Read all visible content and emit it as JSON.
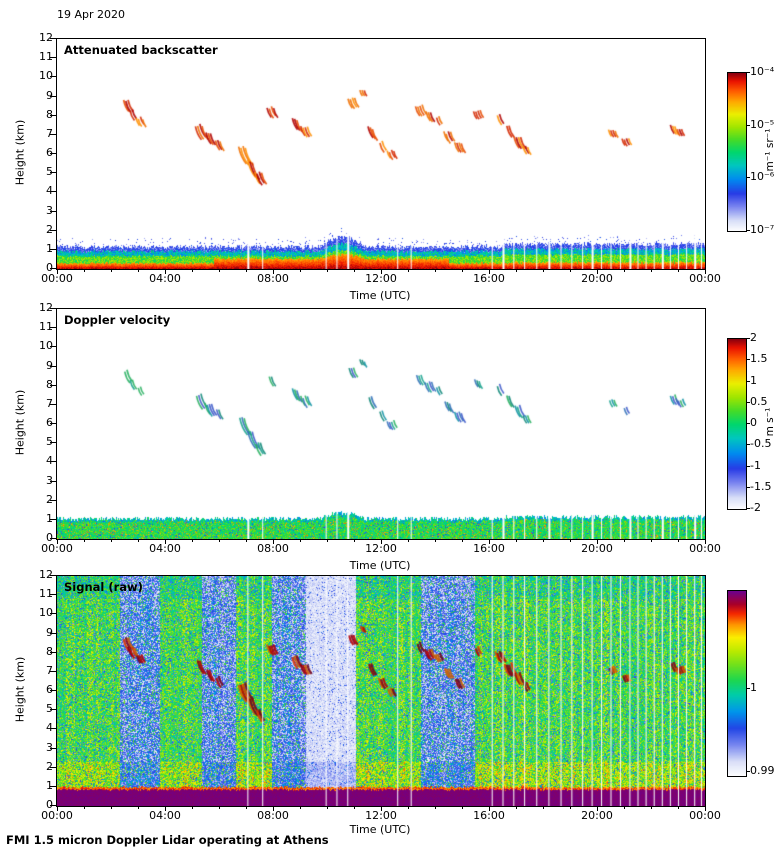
{
  "page": {
    "date_label": "19 Apr 2020",
    "footer_caption": "FMI 1.5 micron Doppler Lidar operating at Athens",
    "background_color": "#ffffff"
  },
  "axes": {
    "x_label": "Time (UTC)",
    "y_label": "Height (km)",
    "x_tick_labels": [
      "00:00",
      "04:00",
      "08:00",
      "12:00",
      "16:00",
      "20:00",
      "00:00"
    ],
    "x_tick_hours": [
      0,
      4,
      8,
      12,
      16,
      20,
      24
    ],
    "x_range_hours": [
      0,
      24
    ],
    "y_tick_labels": [
      "0",
      "1",
      "2",
      "3",
      "4",
      "5",
      "6",
      "7",
      "8",
      "9",
      "10",
      "11",
      "12"
    ],
    "y_range_km": [
      0,
      12
    ]
  },
  "chart_data": [
    {
      "type": "heatmap",
      "title": "Attenuated backscatter",
      "xlabel": "Time (UTC)",
      "ylabel": "Height (km)",
      "x_range_hours": [
        0,
        24
      ],
      "y_range_km": [
        0,
        12
      ],
      "colorbar": {
        "scale": "log",
        "range": [
          "1e-7",
          "1e-4"
        ],
        "tick_labels": [
          "10⁻⁴",
          "10⁻⁵",
          "10⁻⁶",
          "10⁻⁷"
        ],
        "tick_positions": [
          0,
          0.333,
          0.667,
          1
        ],
        "units": "m⁻¹ sr⁻¹"
      },
      "boundary_layer": {
        "top_km": 1.2,
        "description": "Continuous aerosol layer below ~1.3 km: red/orange near surface (~10⁻⁴, thicker 06:00–14:30 UTC), green/yellow mid-layer, blue speckled top; small green hump to ~1.7 km near 10:30 UTC."
      },
      "elevated_layers_value": "thin slanted aerosol/cloud streaks ~10⁻⁵ (orange/red), 5–9.5 km",
      "elevated_layers": [
        {
          "time_utc": 2.55,
          "height_km": 8.85,
          "depth_km": 0.6
        },
        {
          "time_utc": 2.75,
          "height_km": 8.35,
          "depth_km": 0.5
        },
        {
          "time_utc": 3.05,
          "height_km": 7.95,
          "depth_km": 0.4
        },
        {
          "time_utc": 5.25,
          "height_km": 7.6,
          "depth_km": 0.7
        },
        {
          "time_utc": 5.6,
          "height_km": 7.15,
          "depth_km": 0.6
        },
        {
          "time_utc": 5.95,
          "height_km": 6.8,
          "depth_km": 0.5
        },
        {
          "time_utc": 6.85,
          "height_km": 6.45,
          "depth_km": 0.9
        },
        {
          "time_utc": 7.15,
          "height_km": 5.7,
          "depth_km": 0.9
        },
        {
          "time_utc": 7.45,
          "height_km": 5.1,
          "depth_km": 0.6
        },
        {
          "time_utc": 7.9,
          "height_km": 8.5,
          "depth_km": 0.5
        },
        {
          "time_utc": 8.8,
          "height_km": 7.9,
          "depth_km": 0.6
        },
        {
          "time_utc": 9.15,
          "height_km": 7.5,
          "depth_km": 0.5
        },
        {
          "time_utc": 10.9,
          "height_km": 9.0,
          "depth_km": 0.5
        },
        {
          "time_utc": 11.3,
          "height_km": 9.4,
          "depth_km": 0.3
        },
        {
          "time_utc": 11.6,
          "height_km": 7.45,
          "depth_km": 0.6
        },
        {
          "time_utc": 12.0,
          "height_km": 6.7,
          "depth_km": 0.5
        },
        {
          "time_utc": 12.35,
          "height_km": 6.25,
          "depth_km": 0.4
        },
        {
          "time_utc": 13.4,
          "height_km": 8.6,
          "depth_km": 0.5
        },
        {
          "time_utc": 13.75,
          "height_km": 8.25,
          "depth_km": 0.5
        },
        {
          "time_utc": 14.1,
          "height_km": 8.0,
          "depth_km": 0.4
        },
        {
          "time_utc": 14.45,
          "height_km": 7.2,
          "depth_km": 0.5
        },
        {
          "time_utc": 14.85,
          "height_km": 6.7,
          "depth_km": 0.5
        },
        {
          "time_utc": 15.55,
          "height_km": 8.35,
          "depth_km": 0.4
        },
        {
          "time_utc": 16.35,
          "height_km": 8.1,
          "depth_km": 0.5
        },
        {
          "time_utc": 16.7,
          "height_km": 7.5,
          "depth_km": 0.6
        },
        {
          "time_utc": 17.05,
          "height_km": 7.0,
          "depth_km": 0.6
        },
        {
          "time_utc": 17.35,
          "height_km": 6.5,
          "depth_km": 0.4
        },
        {
          "time_utc": 20.55,
          "height_km": 7.35,
          "depth_km": 0.35
        },
        {
          "time_utc": 21.05,
          "height_km": 6.9,
          "depth_km": 0.35
        },
        {
          "time_utc": 22.8,
          "height_km": 7.55,
          "depth_km": 0.45
        },
        {
          "time_utc": 23.05,
          "height_km": 7.35,
          "depth_km": 0.35
        }
      ],
      "gap_times_utc": [
        7.05,
        7.6,
        9.95,
        10.35,
        10.75,
        12.6,
        13.1,
        16.1,
        16.5,
        16.9,
        17.3,
        17.75,
        18.2,
        18.65,
        19.05,
        19.45,
        19.8,
        20.15,
        20.5,
        20.85,
        21.2,
        21.5,
        21.8,
        22.1,
        22.4,
        22.7,
        23.0,
        23.3,
        23.6,
        23.85
      ],
      "feature_colors": [
        "#ff9000",
        "#f07000",
        "#e84c00",
        "#d42800",
        "#b00000"
      ]
    },
    {
      "type": "heatmap",
      "title": "Doppler velocity",
      "xlabel": "Time (UTC)",
      "ylabel": "Height (km)",
      "x_range_hours": [
        0,
        24
      ],
      "y_range_km": [
        0,
        12
      ],
      "colorbar": {
        "scale": "linear",
        "range": [
          -2,
          2
        ],
        "tick_labels": [
          "2",
          "1.5",
          "1",
          "0.5",
          "0",
          "-0.5",
          "-1",
          "-1.5",
          "-2"
        ],
        "tick_positions": [
          0,
          0.125,
          0.25,
          0.375,
          0.5,
          0.625,
          0.75,
          0.875,
          1
        ],
        "units": "m s⁻¹"
      },
      "boundary_layer": {
        "top_km": 1.1,
        "description": "Noisy near-zero velocities (green, ~0 to -0.5 m/s) below ~1.2 km with sparse orange/blue specks; vertical white data gaps after ~16:00 UTC."
      },
      "elevated_layers_value": "same streaks as backscatter panel, teal/green/blue (~ -1 to +0.5 m/s)",
      "elevated_layers": "same locations as Attenuated backscatter panel",
      "feature_colors": [
        "#0e8878",
        "#17a38d",
        "#2f6fb8",
        "#27b060",
        "#0f93a5",
        "#3b58c9"
      ]
    },
    {
      "type": "heatmap",
      "title": "Signal (raw)",
      "xlabel": "Time (UTC)",
      "ylabel": "Height (km)",
      "x_range_hours": [
        0,
        24
      ],
      "y_range_km": [
        0,
        12
      ],
      "colorbar": {
        "scale": "linear",
        "range": [
          0.99,
          1.005
        ],
        "tick_labels": [
          "1",
          "0.99"
        ],
        "tick_positions": [
          0.53,
          0.98
        ],
        "units": ""
      },
      "surface_band": {
        "top_km": 0.85,
        "description": "Solid dark purple saturated band below ~0.85 km (signal > 1) with thin orange transition just above."
      },
      "background_bands": [
        {
          "t0": 0.0,
          "t1": 2.3,
          "type": "green"
        },
        {
          "t0": 2.3,
          "t1": 3.8,
          "type": "blue"
        },
        {
          "t0": 3.8,
          "t1": 5.35,
          "type": "green"
        },
        {
          "t0": 5.35,
          "t1": 6.6,
          "type": "blue"
        },
        {
          "t0": 6.6,
          "t1": 7.95,
          "type": "green"
        },
        {
          "t0": 7.95,
          "t1": 9.2,
          "type": "blue"
        },
        {
          "t0": 9.2,
          "t1": 11.05,
          "type": "white"
        },
        {
          "t0": 11.05,
          "t1": 13.45,
          "type": "green"
        },
        {
          "t0": 13.45,
          "t1": 15.45,
          "type": "blue"
        },
        {
          "t0": 15.45,
          "t1": 24.0,
          "type": "green"
        }
      ],
      "elevated_layers_value": "same streak locations, strong red/dark-red raw-signal echoes 5–9.5 km",
      "elevated_layers": "same locations as Attenuated backscatter panel",
      "feature_colors": [
        "#b80000",
        "#8f0012",
        "#e03400",
        "#74001a",
        "#d06000"
      ]
    }
  ]
}
